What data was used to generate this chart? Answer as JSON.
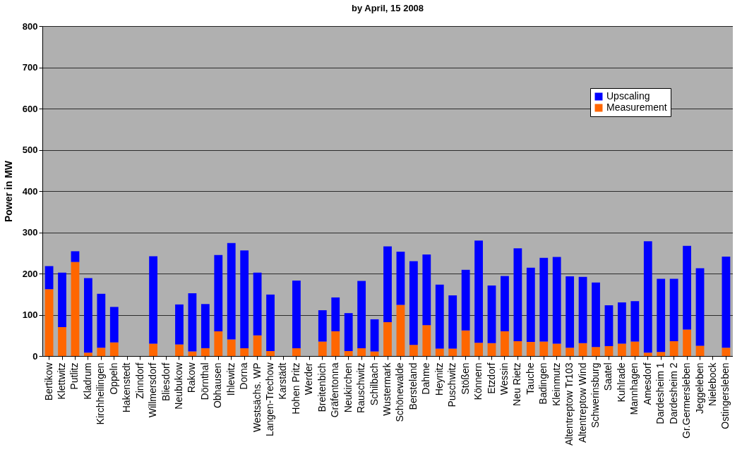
{
  "chart_data": {
    "type": "bar",
    "title": "by April, 15 2008",
    "ylabel": "Power in MW",
    "stacked": true,
    "categories": [
      "Bertikow",
      "Klettwitz",
      "Putlitz",
      "Kladrum",
      "Kirchheilingen",
      "Oppeln",
      "Hakenstedt",
      "Zinndorf",
      "Willmersdorf",
      "Bliesdorf",
      "Neubukow",
      "Rakow",
      "Dörnthal",
      "Obhausen",
      "Ihlewitz",
      "Dorna",
      "Westsächs. WP",
      "Langen-Trechow",
      "Karstädt",
      "Hohen Pritz",
      "Werder",
      "Breitenbich",
      "Gräfentonna",
      "Neukirchen",
      "Rauschwitz",
      "Schilbach",
      "Wustermark",
      "Schönewalde",
      "Bersteland",
      "Dahme",
      "Heynitz",
      "Puschwitz",
      "Stößen",
      "Könnern",
      "Etzdorf",
      "Wessin",
      "Neu Rietz",
      "Tauche",
      "Badingen",
      "Kleinmutz",
      "Altentreptow Tr103",
      "Altentreptow Wind",
      "Schwerinsburg",
      "Saatel",
      "Kuhlrade",
      "Mannhagen",
      "Amesdorf",
      "Dardesheim 1",
      "Dardesheim 2",
      "Gr.Germersleben",
      "Jeggeleben",
      "Nielebock",
      "Ostingersleben"
    ],
    "series": [
      {
        "name": "Measurement",
        "color": "#ff6600",
        "values": [
          162,
          70,
          228,
          8,
          20,
          33,
          null,
          null,
          30,
          null,
          28,
          11,
          19,
          60,
          40,
          19,
          50,
          12,
          null,
          19,
          null,
          35,
          60,
          12,
          19,
          11,
          82,
          124,
          27,
          75,
          18,
          18,
          62,
          32,
          31,
          60,
          36,
          34,
          35,
          30,
          20,
          31,
          22,
          24,
          30,
          35,
          8,
          10,
          36,
          64,
          25,
          null,
          20
        ]
      },
      {
        "name": "Upscaling",
        "color": "#0000ff",
        "values": [
          56,
          132,
          26,
          181,
          131,
          86,
          null,
          null,
          212,
          null,
          97,
          141,
          107,
          185,
          234,
          237,
          152,
          137,
          null,
          164,
          null,
          76,
          82,
          92,
          163,
          78,
          184,
          129,
          203,
          171,
          155,
          129,
          147,
          248,
          140,
          134,
          225,
          180,
          203,
          210,
          173,
          161,
          156,
          99,
          100,
          98,
          270,
          177,
          151,
          203,
          188,
          null,
          221
        ]
      }
    ],
    "ylim": [
      0,
      800
    ],
    "yticks": [
      0,
      100,
      200,
      300,
      400,
      500,
      600,
      700,
      800
    ],
    "grid": "y",
    "legend": "top right"
  }
}
